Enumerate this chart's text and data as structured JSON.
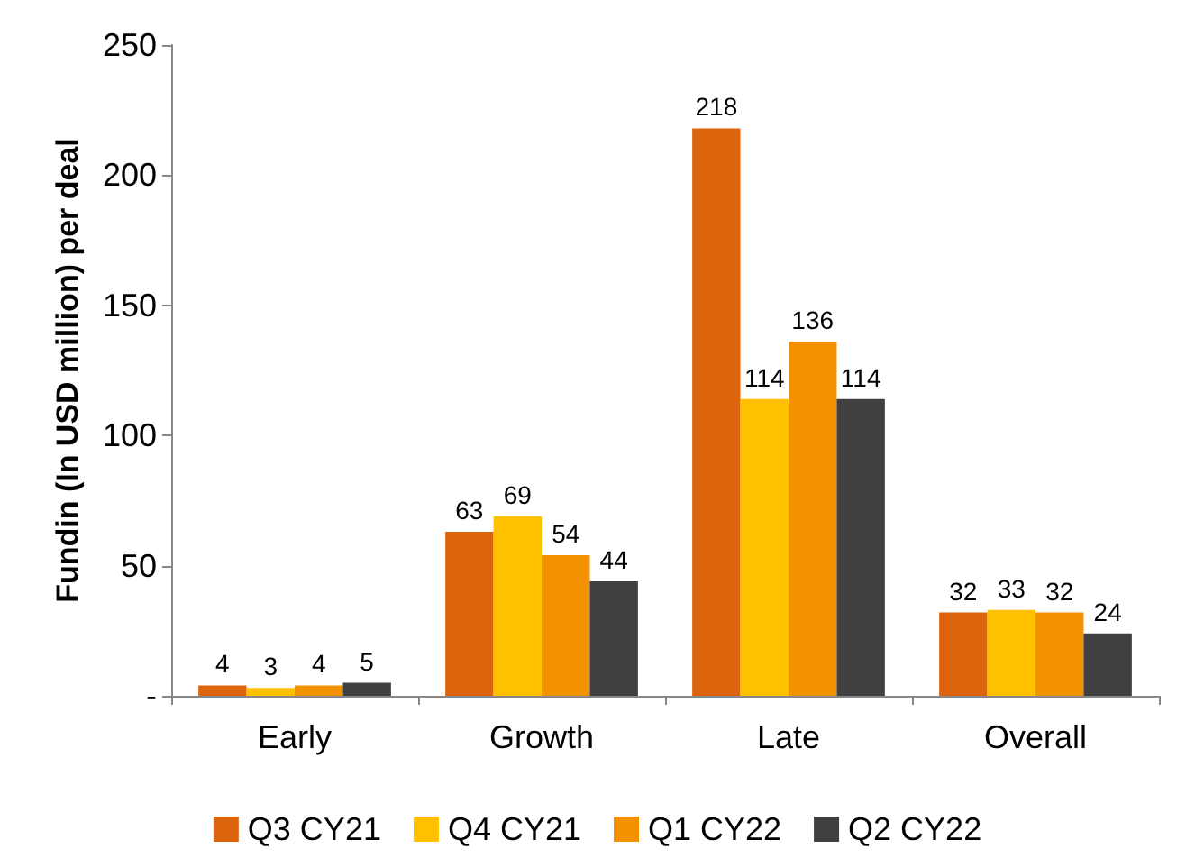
{
  "chart_data": {
    "type": "bar",
    "ylabel": "Fundin (In USD million) per deal",
    "categories": [
      "Early",
      "Growth",
      "Late",
      "Overall"
    ],
    "series": [
      {
        "name": "Q3 CY21",
        "color": "#dc640c",
        "values": [
          4,
          63,
          218,
          32
        ]
      },
      {
        "name": "Q4 CY21",
        "color": "#ffc000",
        "values": [
          3,
          69,
          114,
          33
        ]
      },
      {
        "name": "Q1 CY22",
        "color": "#f39200",
        "values": [
          4,
          54,
          136,
          32
        ]
      },
      {
        "name": "Q2 CY22",
        "color": "#404040",
        "values": [
          5,
          44,
          114,
          24
        ]
      }
    ],
    "ylim": [
      0,
      250
    ],
    "yticks": [
      {
        "value": 0,
        "label": "-"
      },
      50,
      100,
      150,
      200,
      250
    ],
    "grid": false,
    "legend": "bottom",
    "data_labels": true
  }
}
